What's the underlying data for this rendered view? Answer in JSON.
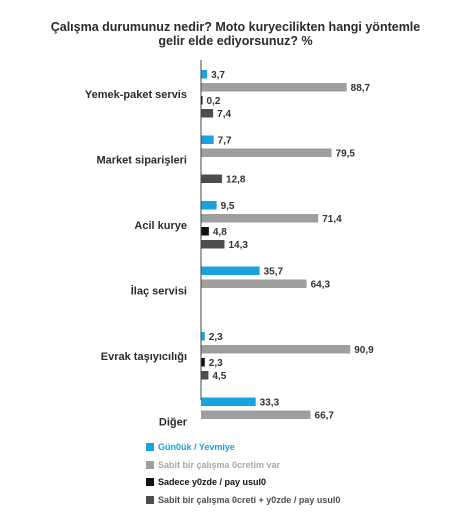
{
  "chart_data": {
    "type": "bar",
    "orientation": "horizontal",
    "title_lines": [
      "Çalışma durumunuz nedir? Moto kuryecilikten hangi yöntemle",
      "gelir elde ediyorsunuz? %"
    ],
    "categories": [
      "Yemek-paket servis",
      "Market siparişleri",
      "Acil kurye",
      "İlaç servisi",
      "Evrak taşıyıcılığı",
      "Diğer"
    ],
    "series": [
      {
        "name": "Gün0ük / Yevmiye",
        "color": "#1ba1dd",
        "values": [
          3.7,
          7.7,
          9.5,
          35.7,
          2.3,
          33.3
        ]
      },
      {
        "name": "Sabit bir çalışma 0cretim var",
        "color": "#9e9e9e",
        "values": [
          88.7,
          79.5,
          71.4,
          64.3,
          90.9,
          66.7
        ]
      },
      {
        "name": "Sadece y0zde / pay usul0",
        "color": "#111111",
        "values": [
          0.2,
          null,
          4.8,
          null,
          2.3,
          null
        ]
      },
      {
        "name": "Sabit bir çalışma 0creti + y0zde / pay usul0",
        "color": "#4d4d4d",
        "values": [
          7.4,
          12.8,
          14.3,
          null,
          4.5,
          null
        ]
      }
    ],
    "value_labels": [
      [
        "3,7",
        "88,7",
        "0,2",
        "7,4"
      ],
      [
        "7,7",
        "79,5",
        "",
        "12,8"
      ],
      [
        "9,5",
        "71,4",
        "4,8",
        "14,3"
      ],
      [
        "35,7",
        "64,3",
        "",
        ""
      ],
      [
        "2,3",
        "90,9",
        "2,3",
        "4,5"
      ],
      [
        "33,3",
        "66,7",
        "",
        ""
      ]
    ],
    "xlim": [
      0,
      100
    ],
    "grid": false,
    "legend_position": "bottom"
  }
}
